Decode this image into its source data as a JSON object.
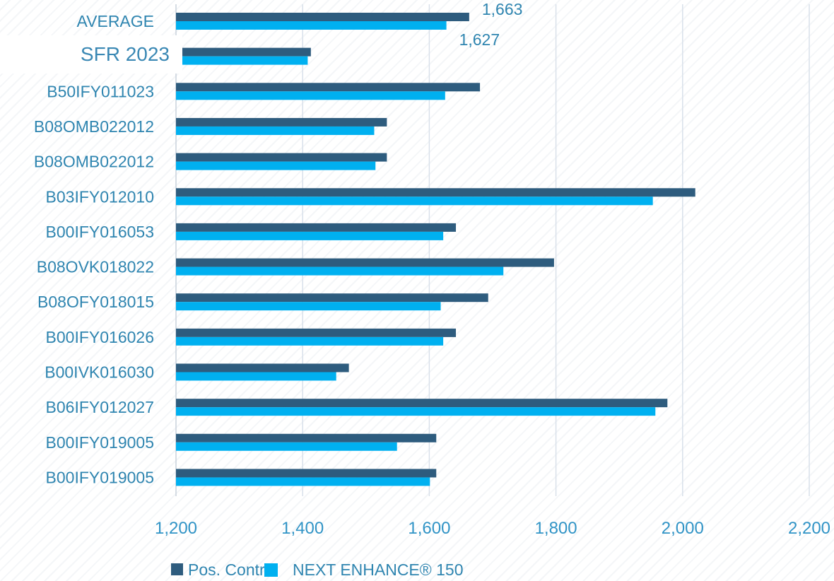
{
  "chart_data": {
    "type": "bar",
    "orientation": "horizontal",
    "title": "SFR 2023",
    "categories": [
      "AVERAGE",
      "",
      "B50IFY011023",
      "B08OMB022012",
      "B08OMB022012",
      "B03IFY012010",
      "B00IFY016053",
      "B08OVK018022",
      "B08OFY018015",
      "B00IFY016026",
      "B00IVK016030",
      "B06IFY012027",
      "B00IFY019005",
      "B00IFY019005"
    ],
    "series": [
      {
        "name": "Pos. Control",
        "color": "#2e5c7e",
        "values": [
          1663,
          1413,
          1680,
          1533,
          1533,
          2020,
          1642,
          1797,
          1693,
          1642,
          1473,
          1976,
          1611,
          1611
        ]
      },
      {
        "name": "NEXT ENHANCE® 150",
        "color": "#00b0f0",
        "values": [
          1627,
          1408,
          1625,
          1513,
          1515,
          1953,
          1622,
          1717,
          1618,
          1622,
          1453,
          1957,
          1549,
          1601
        ]
      }
    ],
    "data_labels": [
      {
        "category_index": 0,
        "series_index": 0,
        "text": "1,663"
      },
      {
        "category_index": 0,
        "series_index": 1,
        "text": "1,627"
      }
    ],
    "xlim": [
      1200,
      2200
    ],
    "xticks": [
      1200,
      1400,
      1600,
      1800,
      2000,
      2200
    ],
    "xtick_labels": [
      "1,200",
      "1,400",
      "1,600",
      "1,800",
      "2,000",
      "2,200"
    ],
    "grid": "vertical",
    "legend_position": "bottom"
  }
}
